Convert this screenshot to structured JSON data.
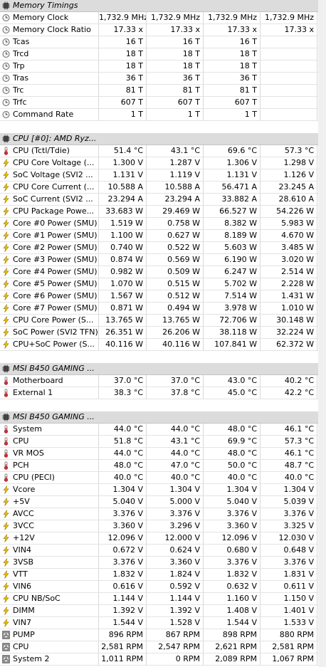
{
  "sections": [
    {
      "title": "Memory Timings",
      "icon": "chip-icon",
      "rows": [
        {
          "label": "Memory Clock",
          "icon": "clock-icon",
          "values": [
            "1,732.9 MHz",
            "1,732.9 MHz",
            "1,732.9 MHz",
            "1,732.9 MHz"
          ]
        },
        {
          "label": "Memory Clock Ratio",
          "icon": "clock-icon",
          "values": [
            "17.33 x",
            "17.33 x",
            "17.33 x",
            "17.33 x"
          ]
        },
        {
          "label": "Tcas",
          "icon": "clock-icon",
          "values": [
            "16 T",
            "16 T",
            "16 T",
            ""
          ]
        },
        {
          "label": "Trcd",
          "icon": "clock-icon",
          "values": [
            "18 T",
            "18 T",
            "18 T",
            ""
          ]
        },
        {
          "label": "Trp",
          "icon": "clock-icon",
          "values": [
            "18 T",
            "18 T",
            "18 T",
            ""
          ]
        },
        {
          "label": "Tras",
          "icon": "clock-icon",
          "values": [
            "36 T",
            "36 T",
            "36 T",
            ""
          ]
        },
        {
          "label": "Trc",
          "icon": "clock-icon",
          "values": [
            "81 T",
            "81 T",
            "81 T",
            ""
          ]
        },
        {
          "label": "Trfc",
          "icon": "clock-icon",
          "values": [
            "607 T",
            "607 T",
            "607 T",
            ""
          ]
        },
        {
          "label": "Command Rate",
          "icon": "clock-icon",
          "values": [
            "1 T",
            "1 T",
            "1 T",
            ""
          ]
        }
      ]
    },
    {
      "title": "CPU [#0]: AMD Ryz...",
      "icon": "chip-icon",
      "rows": [
        {
          "label": "CPU (Tctl/Tdie)",
          "icon": "thermometer-icon",
          "values": [
            "51.4 °C",
            "43.1 °C",
            "69.6 °C",
            "57.3 °C"
          ]
        },
        {
          "label": "CPU Core Voltage (...",
          "icon": "lightning-icon",
          "values": [
            "1.300 V",
            "1.287 V",
            "1.306 V",
            "1.298 V"
          ]
        },
        {
          "label": "SoC Voltage (SVI2 ...",
          "icon": "lightning-icon",
          "values": [
            "1.131 V",
            "1.119 V",
            "1.131 V",
            "1.126 V"
          ]
        },
        {
          "label": "CPU Core Current (...",
          "icon": "lightning-icon",
          "values": [
            "10.588 A",
            "10.588 A",
            "56.471 A",
            "23.245 A"
          ]
        },
        {
          "label": "SoC Current (SVI2 ...",
          "icon": "lightning-icon",
          "values": [
            "23.294 A",
            "23.294 A",
            "33.882 A",
            "28.610 A"
          ]
        },
        {
          "label": "CPU Package Powe...",
          "icon": "lightning-icon",
          "values": [
            "33.683 W",
            "29.469 W",
            "66.527 W",
            "54.226 W"
          ]
        },
        {
          "label": "Core #0 Power (SMU)",
          "icon": "lightning-icon",
          "values": [
            "1.519 W",
            "0.758 W",
            "8.382 W",
            "5.983 W"
          ]
        },
        {
          "label": "Core #1 Power (SMU)",
          "icon": "lightning-icon",
          "values": [
            "1.100 W",
            "0.627 W",
            "8.189 W",
            "4.670 W"
          ]
        },
        {
          "label": "Core #2 Power (SMU)",
          "icon": "lightning-icon",
          "values": [
            "0.740 W",
            "0.522 W",
            "5.603 W",
            "3.485 W"
          ]
        },
        {
          "label": "Core #3 Power (SMU)",
          "icon": "lightning-icon",
          "values": [
            "0.874 W",
            "0.569 W",
            "6.190 W",
            "3.020 W"
          ]
        },
        {
          "label": "Core #4 Power (SMU)",
          "icon": "lightning-icon",
          "values": [
            "0.982 W",
            "0.509 W",
            "6.247 W",
            "2.514 W"
          ]
        },
        {
          "label": "Core #5 Power (SMU)",
          "icon": "lightning-icon",
          "values": [
            "1.070 W",
            "0.515 W",
            "5.702 W",
            "2.228 W"
          ]
        },
        {
          "label": "Core #6 Power (SMU)",
          "icon": "lightning-icon",
          "values": [
            "1.567 W",
            "0.512 W",
            "7.514 W",
            "1.431 W"
          ]
        },
        {
          "label": "Core #7 Power (SMU)",
          "icon": "lightning-icon",
          "values": [
            "0.871 W",
            "0.494 W",
            "3.978 W",
            "1.010 W"
          ]
        },
        {
          "label": "CPU Core Power (S...",
          "icon": "lightning-icon",
          "values": [
            "13.765 W",
            "13.765 W",
            "72.706 W",
            "30.148 W"
          ]
        },
        {
          "label": "SoC Power (SVI2 TFN)",
          "icon": "lightning-icon",
          "values": [
            "26.351 W",
            "26.206 W",
            "38.118 W",
            "32.224 W"
          ]
        },
        {
          "label": "CPU+SoC Power (S...",
          "icon": "lightning-icon",
          "values": [
            "40.116 W",
            "40.116 W",
            "107.841 W",
            "62.372 W"
          ]
        }
      ]
    },
    {
      "title": "MSI B450 GAMING ...",
      "icon": "chip-icon",
      "rows": [
        {
          "label": "Motherboard",
          "icon": "thermometer-icon",
          "values": [
            "37.0 °C",
            "37.0 °C",
            "43.0 °C",
            "40.2 °C"
          ]
        },
        {
          "label": "External 1",
          "icon": "thermometer-icon",
          "values": [
            "38.3 °C",
            "37.8 °C",
            "45.0 °C",
            "42.2 °C"
          ]
        }
      ]
    },
    {
      "title": "MSI B450 GAMING ...",
      "icon": "chip-icon",
      "rows": [
        {
          "label": "System",
          "icon": "thermometer-icon",
          "values": [
            "44.0 °C",
            "44.0 °C",
            "48.0 °C",
            "46.1 °C"
          ]
        },
        {
          "label": "CPU",
          "icon": "thermometer-icon",
          "values": [
            "51.8 °C",
            "43.1 °C",
            "69.9 °C",
            "57.3 °C"
          ]
        },
        {
          "label": "VR MOS",
          "icon": "thermometer-icon",
          "values": [
            "44.0 °C",
            "44.0 °C",
            "48.0 °C",
            "46.1 °C"
          ]
        },
        {
          "label": "PCH",
          "icon": "thermometer-icon",
          "values": [
            "48.0 °C",
            "47.0 °C",
            "50.0 °C",
            "48.7 °C"
          ]
        },
        {
          "label": "CPU (PECI)",
          "icon": "thermometer-icon",
          "values": [
            "40.0 °C",
            "40.0 °C",
            "40.0 °C",
            "40.0 °C"
          ]
        },
        {
          "label": "Vcore",
          "icon": "lightning-icon",
          "values": [
            "1.304 V",
            "1.304 V",
            "1.304 V",
            "1.304 V"
          ]
        },
        {
          "label": "+5V",
          "icon": "lightning-icon",
          "values": [
            "5.040 V",
            "5.000 V",
            "5.040 V",
            "5.039 V"
          ]
        },
        {
          "label": "AVCC",
          "icon": "lightning-icon",
          "values": [
            "3.376 V",
            "3.376 V",
            "3.376 V",
            "3.376 V"
          ]
        },
        {
          "label": "3VCC",
          "icon": "lightning-icon",
          "values": [
            "3.360 V",
            "3.296 V",
            "3.360 V",
            "3.325 V"
          ]
        },
        {
          "label": "+12V",
          "icon": "lightning-icon",
          "values": [
            "12.096 V",
            "12.000 V",
            "12.096 V",
            "12.030 V"
          ]
        },
        {
          "label": "VIN4",
          "icon": "lightning-icon",
          "values": [
            "0.672 V",
            "0.624 V",
            "0.680 V",
            "0.648 V"
          ]
        },
        {
          "label": "3VSB",
          "icon": "lightning-icon",
          "values": [
            "3.376 V",
            "3.360 V",
            "3.376 V",
            "3.376 V"
          ]
        },
        {
          "label": "VTT",
          "icon": "lightning-icon",
          "values": [
            "1.832 V",
            "1.824 V",
            "1.832 V",
            "1.831 V"
          ]
        },
        {
          "label": "VIN6",
          "icon": "lightning-icon",
          "values": [
            "0.616 V",
            "0.592 V",
            "0.632 V",
            "0.611 V"
          ]
        },
        {
          "label": "CPU NB/SoC",
          "icon": "lightning-icon",
          "values": [
            "1.144 V",
            "1.144 V",
            "1.160 V",
            "1.150 V"
          ]
        },
        {
          "label": "DIMM",
          "icon": "lightning-icon",
          "values": [
            "1.392 V",
            "1.392 V",
            "1.408 V",
            "1.401 V"
          ]
        },
        {
          "label": "VIN7",
          "icon": "lightning-icon",
          "values": [
            "1.544 V",
            "1.528 V",
            "1.544 V",
            "1.533 V"
          ]
        },
        {
          "label": "PUMP",
          "icon": "fan-icon",
          "values": [
            "896 RPM",
            "867 RPM",
            "898 RPM",
            "880 RPM"
          ]
        },
        {
          "label": "CPU",
          "icon": "fan-icon",
          "values": [
            "2,581 RPM",
            "2,547 RPM",
            "2,621 RPM",
            "2,581 RPM"
          ]
        },
        {
          "label": "System 2",
          "icon": "fan-icon",
          "values": [
            "1,011 RPM",
            "0 RPM",
            "2,089 RPM",
            "1,067 RPM"
          ]
        }
      ]
    }
  ]
}
